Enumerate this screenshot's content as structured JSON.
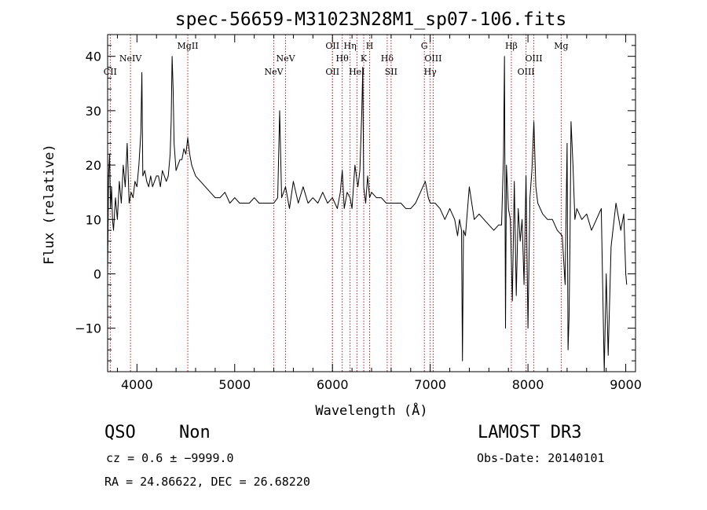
{
  "chart_data": {
    "type": "line",
    "title": "spec-56659-M31023N28M1_sp07-106.fits",
    "xlabel": "Wavelength (Å)",
    "ylabel": "Flux (relative)",
    "xlim": [
      3700,
      9100
    ],
    "ylim": [
      -18,
      44
    ],
    "xticks": [
      4000,
      5000,
      6000,
      7000,
      8000,
      9000
    ],
    "xtick_labels": [
      "4000",
      "5000",
      "6000",
      "7000",
      "8000",
      "9000"
    ],
    "yticks": [
      -10,
      0,
      10,
      20,
      30,
      40
    ],
    "ytick_labels": [
      "−10",
      "0",
      "10",
      "20",
      "30",
      "40"
    ],
    "series": [
      {
        "name": "spectrum",
        "x": [
          3700,
          3710,
          3720,
          3730,
          3740,
          3750,
          3760,
          3780,
          3800,
          3820,
          3840,
          3860,
          3880,
          3900,
          3920,
          3940,
          3960,
          3980,
          4000,
          4020,
          4040,
          4050,
          4060,
          4080,
          4100,
          4120,
          4140,
          4160,
          4180,
          4200,
          4220,
          4240,
          4260,
          4280,
          4300,
          4320,
          4340,
          4350,
          4360,
          4370,
          4380,
          4400,
          4420,
          4440,
          4460,
          4480,
          4500,
          4520,
          4540,
          4560,
          4580,
          4600,
          4650,
          4700,
          4750,
          4800,
          4850,
          4900,
          4950,
          5000,
          5050,
          5100,
          5150,
          5200,
          5250,
          5300,
          5350,
          5400,
          5440,
          5460,
          5480,
          5520,
          5560,
          5600,
          5650,
          5700,
          5750,
          5800,
          5850,
          5900,
          5950,
          6000,
          6050,
          6080,
          6100,
          6120,
          6150,
          6180,
          6200,
          6230,
          6260,
          6280,
          6300,
          6310,
          6320,
          6340,
          6360,
          6380,
          6400,
          6450,
          6500,
          6550,
          6600,
          6650,
          6700,
          6750,
          6800,
          6850,
          6900,
          6950,
          6980,
          7000,
          7050,
          7100,
          7150,
          7200,
          7250,
          7280,
          7300,
          7320,
          7330,
          7340,
          7360,
          7400,
          7450,
          7500,
          7550,
          7600,
          7650,
          7700,
          7730,
          7750,
          7760,
          7770,
          7780,
          7800,
          7820,
          7840,
          7860,
          7880,
          7900,
          7920,
          7940,
          7960,
          7980,
          8000,
          8020,
          8040,
          8060,
          8080,
          8100,
          8150,
          8200,
          8250,
          8300,
          8350,
          8380,
          8400,
          8410,
          8420,
          8430,
          8440,
          8460,
          8480,
          8500,
          8550,
          8600,
          8650,
          8700,
          8750,
          8780,
          8800,
          8820,
          8850,
          8900,
          8950,
          8980,
          9000,
          9010
        ],
        "y": [
          0,
          18,
          22,
          12,
          16,
          10,
          8,
          14,
          10,
          17,
          13,
          20,
          16,
          24,
          13,
          15,
          14,
          17,
          16,
          20,
          26,
          37,
          18,
          19,
          17,
          16,
          18,
          16,
          17,
          18,
          18,
          16,
          19,
          18,
          17,
          18,
          22,
          28,
          40,
          34,
          24,
          19,
          20,
          21,
          21,
          23,
          22,
          25,
          22,
          20,
          19,
          18,
          17,
          16,
          15,
          14,
          14,
          15,
          13,
          14,
          13,
          13,
          13,
          14,
          13,
          13,
          13,
          13,
          14,
          30,
          14,
          16,
          12,
          17,
          13,
          16,
          13,
          14,
          13,
          15,
          13,
          14,
          12,
          15,
          19,
          12,
          15,
          14,
          12,
          20,
          16,
          19,
          30,
          38,
          16,
          13,
          18,
          14,
          15,
          14,
          14,
          13,
          13,
          13,
          13,
          12,
          12,
          13,
          15,
          17,
          14,
          13,
          13,
          12,
          10,
          12,
          10,
          7,
          10,
          8,
          -16,
          8,
          7,
          16,
          10,
          11,
          10,
          9,
          8,
          9,
          9,
          22,
          40,
          -10,
          20,
          12,
          10,
          -5,
          17,
          -4,
          12,
          6,
          10,
          -2,
          18,
          -10,
          14,
          19,
          28,
          16,
          13,
          11,
          10,
          10,
          8,
          7,
          -2,
          24,
          -14,
          -8,
          6,
          28,
          20,
          10,
          12,
          10,
          11,
          8,
          10,
          12,
          -18,
          0,
          -15,
          5,
          13,
          8,
          11,
          0,
          -2
        ]
      }
    ],
    "lines": [
      {
        "wl": 3727,
        "label": "CII",
        "row": 3
      },
      {
        "wl": 3934,
        "label": "NeIV",
        "row": 2
      },
      {
        "wl": 4520,
        "label": "MgII",
        "row": 1
      },
      {
        "wl": 5400,
        "label": "NeV",
        "row": 3
      },
      {
        "wl": 5520,
        "label": "NeV",
        "row": 2
      },
      {
        "wl": 6000,
        "label": "OII",
        "row": 3
      },
      {
        "wl": 6000,
        "label": "OII",
        "row": 1
      },
      {
        "wl": 6100,
        "label": "Hθ",
        "row": 2
      },
      {
        "wl": 6180,
        "label": "Hη",
        "row": 1
      },
      {
        "wl": 6250,
        "label": "HeI",
        "row": 3
      },
      {
        "wl": 6320,
        "label": "K",
        "row": 2
      },
      {
        "wl": 6380,
        "label": "H",
        "row": 1
      },
      {
        "wl": 6560,
        "label": "Hδ",
        "row": 2
      },
      {
        "wl": 6600,
        "label": "SII",
        "row": 3
      },
      {
        "wl": 6940,
        "label": "G",
        "row": 1
      },
      {
        "wl": 7000,
        "label": "Hγ",
        "row": 3
      },
      {
        "wl": 7030,
        "label": "OIII",
        "row": 2
      },
      {
        "wl": 7830,
        "label": "Hβ",
        "row": 1
      },
      {
        "wl": 7980,
        "label": "OIII",
        "row": 3
      },
      {
        "wl": 8060,
        "label": "OIII",
        "row": 2
      },
      {
        "wl": 8340,
        "label": "Mg",
        "row": 1
      }
    ]
  },
  "info": {
    "class": "QSO",
    "subclass": "Non",
    "survey": "LAMOST DR3",
    "cz": "cz = 0.6 ± −9999.0",
    "obs_date": "Obs-Date: 20140101",
    "radec": "RA =  24.86622, DEC =  26.68220"
  }
}
